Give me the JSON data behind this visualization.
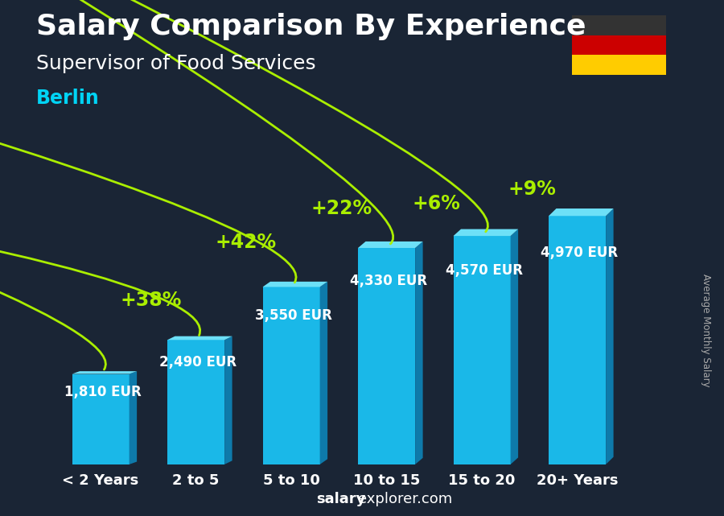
{
  "title": "Salary Comparison By Experience",
  "subtitle": "Supervisor of Food Services",
  "city": "Berlin",
  "categories": [
    "< 2 Years",
    "2 to 5",
    "5 to 10",
    "10 to 15",
    "15 to 20",
    "20+ Years"
  ],
  "values": [
    1810,
    2490,
    3550,
    4330,
    4570,
    4970
  ],
  "labels": [
    "1,810 EUR",
    "2,490 EUR",
    "3,550 EUR",
    "4,330 EUR",
    "4,570 EUR",
    "4,970 EUR"
  ],
  "pct_changes": [
    null,
    "+38%",
    "+42%",
    "+22%",
    "+6%",
    "+9%"
  ],
  "bar_color_body": "#1ab8e8",
  "bar_color_side": "#0e7aaa",
  "bar_color_top": "#6de0f7",
  "bg_color": "#1a2535",
  "text_color_white": "#ffffff",
  "text_color_cyan": "#00d4f5",
  "text_color_green": "#aaee00",
  "ylabel_text": "Average Monthly Salary",
  "footer_bold": "salary",
  "footer_normal": "explorer.com",
  "title_fontsize": 26,
  "subtitle_fontsize": 18,
  "city_fontsize": 17,
  "bar_label_fontsize": 12,
  "pct_fontsize": 17,
  "cat_fontsize": 13,
  "footer_fontsize": 13
}
